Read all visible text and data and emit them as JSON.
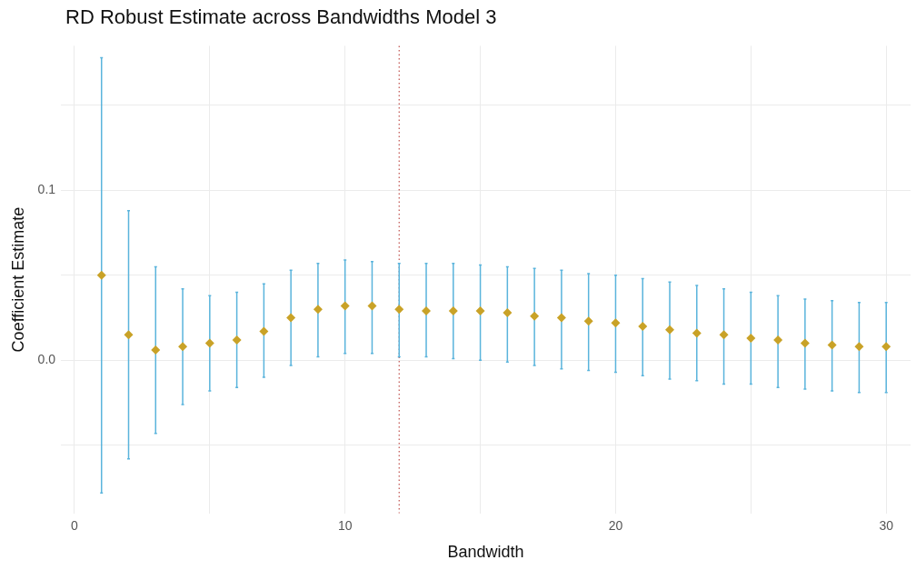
{
  "chart_data": {
    "type": "scatter",
    "title": "RD Robust Estimate across Bandwidths Model 3",
    "xlabel": "Bandwidth",
    "ylabel": "Coefficient Estimate",
    "x": [
      1,
      2,
      3,
      4,
      5,
      6,
      7,
      8,
      9,
      10,
      11,
      12,
      13,
      14,
      15,
      16,
      17,
      18,
      19,
      20,
      21,
      22,
      23,
      24,
      25,
      26,
      27,
      28,
      29,
      30
    ],
    "values": [
      0.05,
      0.015,
      0.006,
      0.008,
      0.01,
      0.012,
      0.017,
      0.025,
      0.03,
      0.032,
      0.032,
      0.03,
      0.029,
      0.029,
      0.029,
      0.028,
      0.026,
      0.025,
      0.023,
      0.022,
      0.02,
      0.018,
      0.016,
      0.015,
      0.013,
      0.012,
      0.01,
      0.009,
      0.008,
      0.008
    ],
    "errors": [
      [
        -0.078,
        0.178
      ],
      [
        -0.058,
        0.088
      ],
      [
        -0.043,
        0.055
      ],
      [
        -0.026,
        0.042
      ],
      [
        -0.018,
        0.038
      ],
      [
        -0.016,
        0.04
      ],
      [
        -0.01,
        0.045
      ],
      [
        -0.003,
        0.053
      ],
      [
        0.002,
        0.057
      ],
      [
        0.004,
        0.059
      ],
      [
        0.004,
        0.058
      ],
      [
        0.002,
        0.057
      ],
      [
        0.002,
        0.057
      ],
      [
        0.001,
        0.057
      ],
      [
        0.0,
        0.056
      ],
      [
        -0.001,
        0.055
      ],
      [
        -0.003,
        0.054
      ],
      [
        -0.005,
        0.053
      ],
      [
        -0.006,
        0.051
      ],
      [
        -0.007,
        0.05
      ],
      [
        -0.009,
        0.048
      ],
      [
        -0.011,
        0.046
      ],
      [
        -0.012,
        0.044
      ],
      [
        -0.014,
        0.042
      ],
      [
        -0.014,
        0.04
      ],
      [
        -0.016,
        0.038
      ],
      [
        -0.017,
        0.036
      ],
      [
        -0.018,
        0.035
      ],
      [
        -0.019,
        0.034
      ],
      [
        -0.019,
        0.034
      ]
    ],
    "color": "#c9a227",
    "xlim": [
      -0.5,
      30.9
    ],
    "ylim": [
      -0.09,
      0.185
    ],
    "xticks": [
      0,
      {
        "value": 5,
        "label": null
      },
      10,
      {
        "value": 15,
        "label": null
      },
      20,
      {
        "value": 25,
        "label": null
      },
      30
    ],
    "yticks": [
      {
        "value": -0.05,
        "label": null
      },
      {
        "value": 0,
        "label": "0.0"
      },
      {
        "value": 0.05,
        "label": null
      },
      0.1,
      {
        "value": 0.15,
        "label": null
      }
    ],
    "ref_lines": [
      {
        "axis": "x",
        "value": 12,
        "color": "#c0504d",
        "line_style": "dotted"
      }
    ],
    "grid": true,
    "marker": "diamond"
  }
}
